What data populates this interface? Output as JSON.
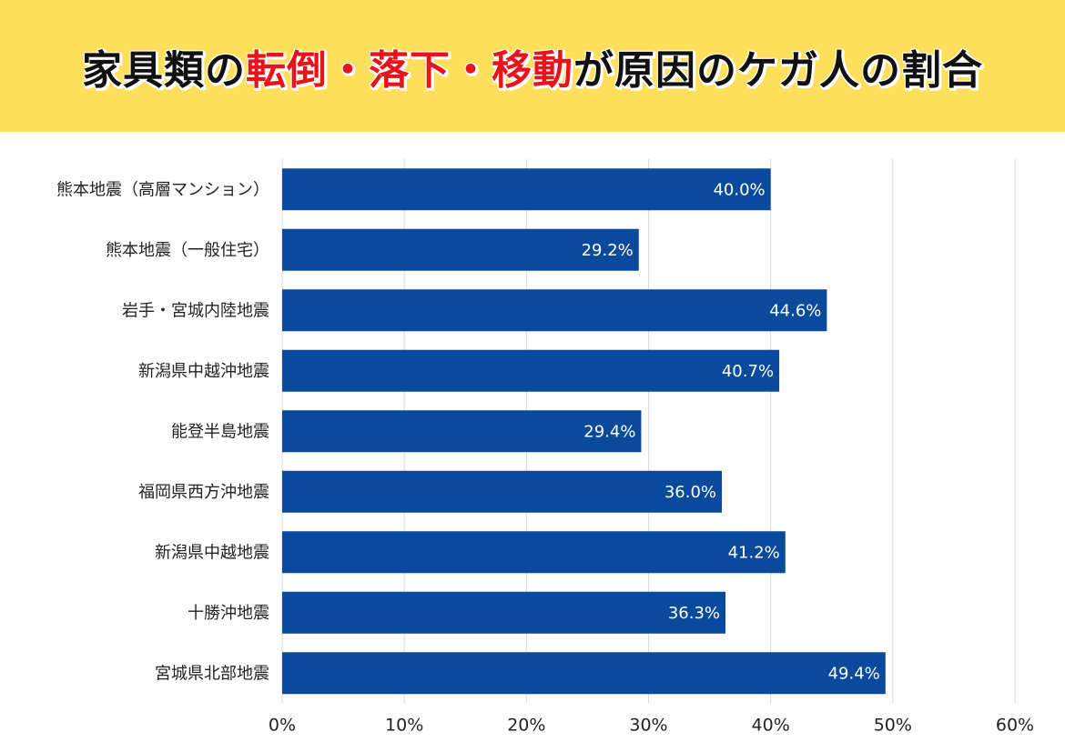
{
  "title": {
    "part1": "家具類の",
    "part2": "転倒・落下・移動",
    "part3": "が原因のケガ人の割合"
  },
  "colors": {
    "banner_background": "#ffdf5c",
    "title_highlight": "#e8141b",
    "bar": "#0a4a9c",
    "grid": "#d9d9d9"
  },
  "chart_data": {
    "type": "bar",
    "orientation": "horizontal",
    "categories": [
      "熊本地震（高層マンション）",
      "熊本地震（一般住宅）",
      "岩手・宮城内陸地震",
      "新潟県中越沖地震",
      "能登半島地震",
      "福岡県西方沖地震",
      "新潟県中越地震",
      "十勝沖地震",
      "宮城県北部地震"
    ],
    "values": [
      40.0,
      29.2,
      44.6,
      40.7,
      29.4,
      36.0,
      41.2,
      36.3,
      49.4
    ],
    "data_labels": [
      "40.0%",
      "29.2%",
      "44.6%",
      "40.7%",
      "29.4%",
      "36.0%",
      "41.2%",
      "36.3%",
      "49.4%"
    ],
    "xlim": [
      0,
      60
    ],
    "x_ticks": [
      0,
      10,
      20,
      30,
      40,
      50,
      60
    ],
    "x_tick_labels": [
      "0%",
      "10%",
      "20%",
      "30%",
      "40%",
      "50%",
      "60%"
    ],
    "grid": true,
    "legend": "none"
  }
}
